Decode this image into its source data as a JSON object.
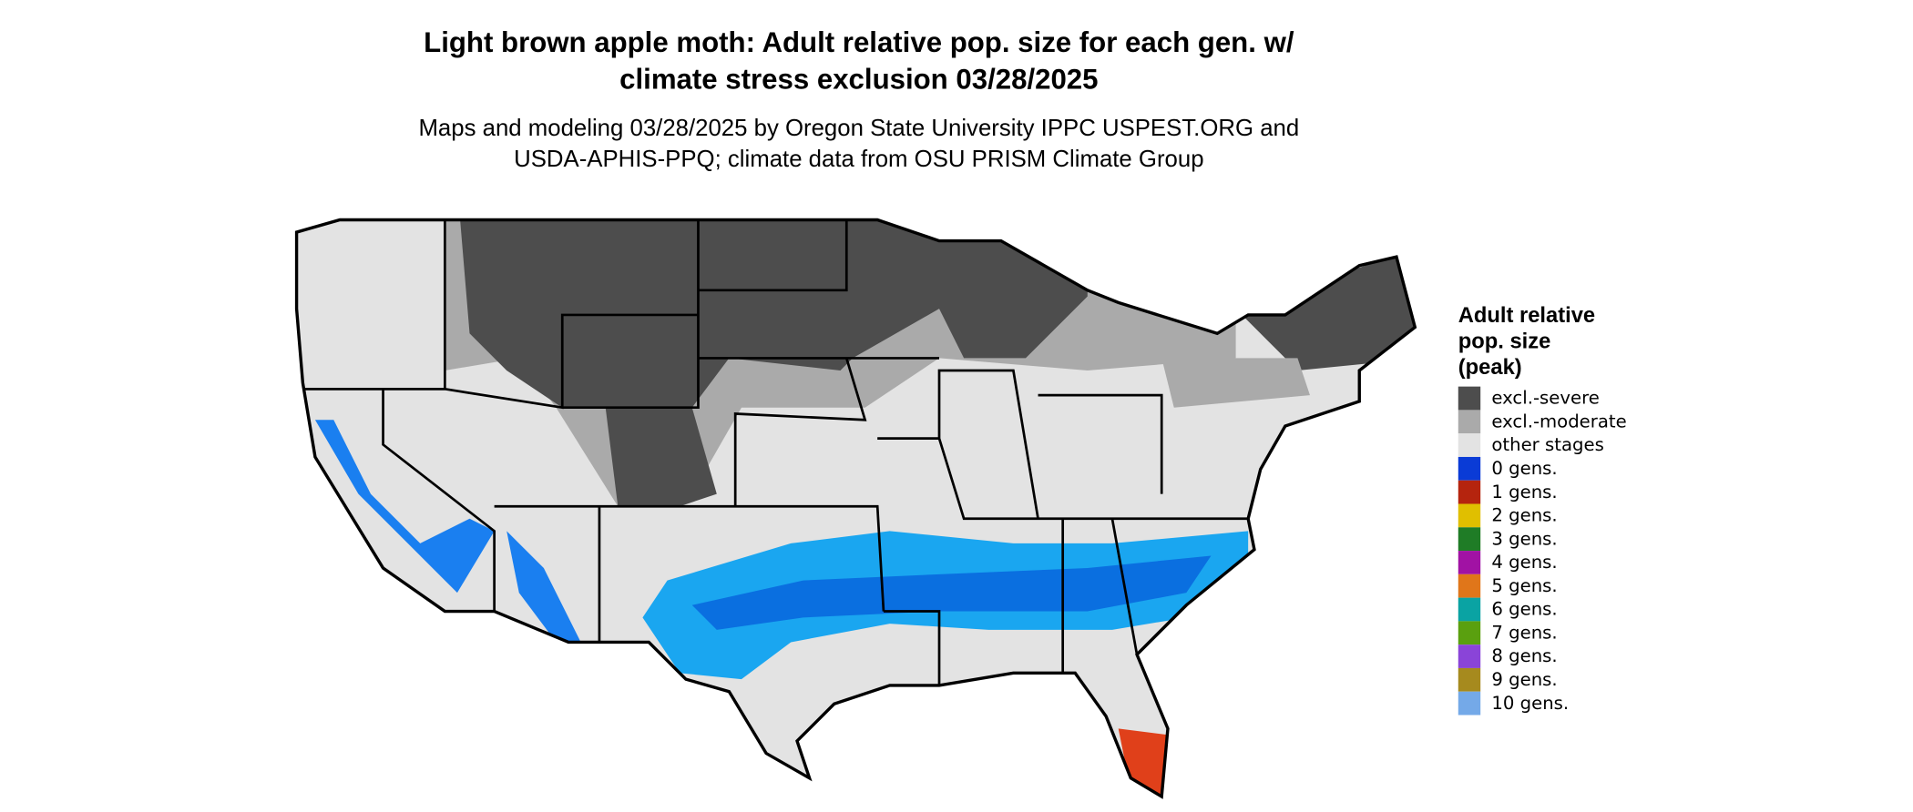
{
  "title": [
    "Light brown apple moth: Adult relative pop. size for each gen. w/",
    "climate stress exclusion 03/28/2025"
  ],
  "subtitle": [
    "Maps and modeling 03/28/2025 by Oregon State University IPPC USPEST.ORG and",
    "USDA-APHIS-PPQ; climate data from OSU PRISM Climate Group"
  ],
  "legend": {
    "title": [
      "Adult relative",
      "pop. size",
      "(peak)"
    ],
    "items": [
      {
        "label": "excl.-severe",
        "color": "#4d4d4d"
      },
      {
        "label": "excl.-moderate",
        "color": "#aaaaaa"
      },
      {
        "label": "other stages",
        "color": "#e3e3e3"
      },
      {
        "label": "0 gens.",
        "color": "#0a3bd6"
      },
      {
        "label": "1 gens.",
        "color": "#b5240e"
      },
      {
        "label": "2 gens.",
        "color": "#e0bf00"
      },
      {
        "label": "3 gens.",
        "color": "#1f7c26"
      },
      {
        "label": "4 gens.",
        "color": "#a112a4"
      },
      {
        "label": "5 gens.",
        "color": "#e0761a"
      },
      {
        "label": "6 gens.",
        "color": "#0aa3a3"
      },
      {
        "label": "7 gens.",
        "color": "#5aa00f"
      },
      {
        "label": "8 gens.",
        "color": "#8a44d8"
      },
      {
        "label": "9 gens.",
        "color": "#a68a1e"
      },
      {
        "label": "10 gens.",
        "color": "#74a9e8"
      }
    ]
  }
}
